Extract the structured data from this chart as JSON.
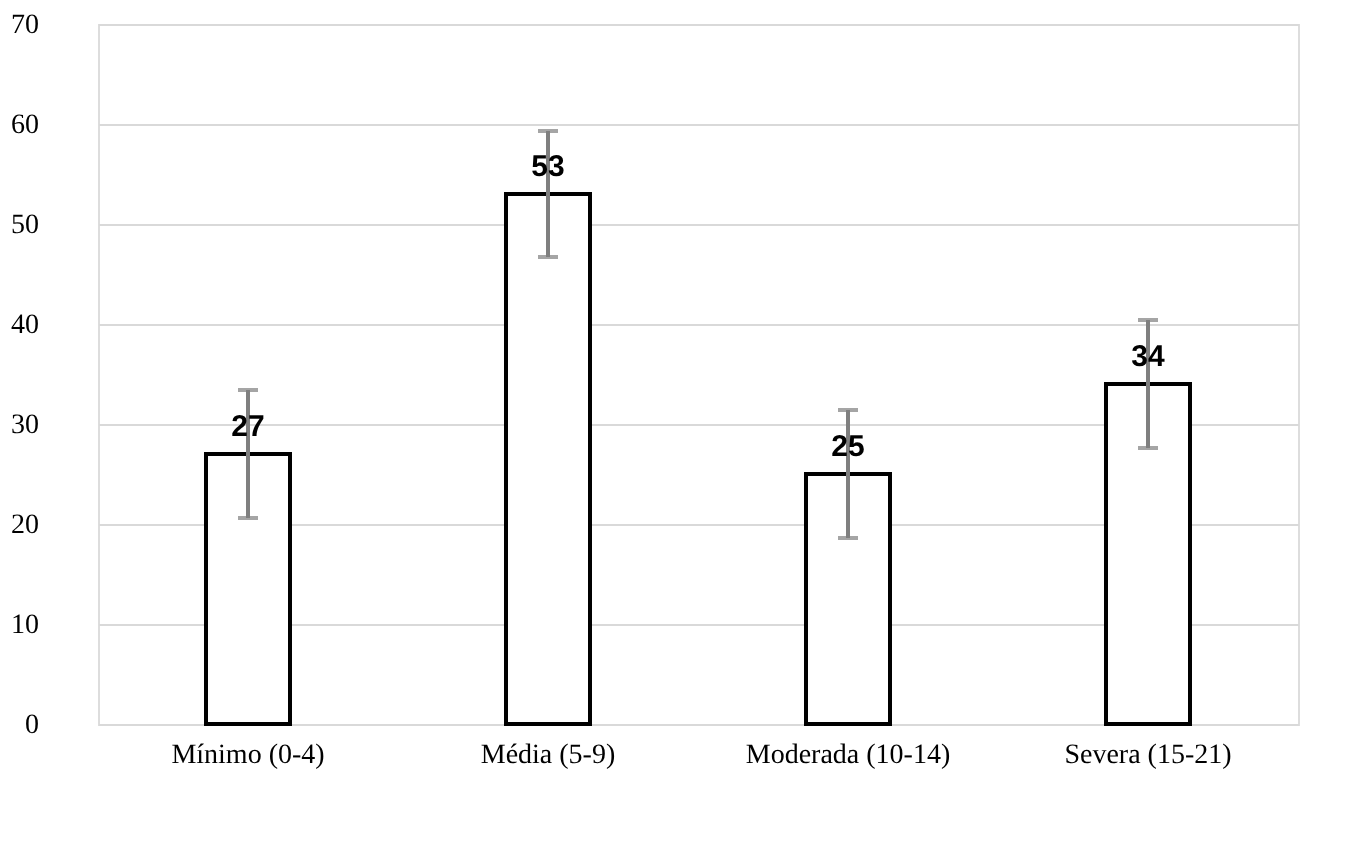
{
  "chart_data": {
    "type": "bar",
    "categories": [
      "Mínimo (0-4)",
      "Média (5-9)",
      "Moderada (10-14)",
      "Severa (15-21)"
    ],
    "values": [
      27,
      53,
      25,
      34
    ],
    "errors": [
      6.4,
      6.3,
      6.4,
      6.4
    ],
    "colors": [
      "#ffffff",
      "#ffffff",
      "#ffffff",
      "#ffffff"
    ],
    "ylim": [
      0,
      70
    ],
    "yticks": [
      0,
      10,
      20,
      30,
      40,
      50,
      60,
      70
    ],
    "grid": "y",
    "data_labels": true
  }
}
